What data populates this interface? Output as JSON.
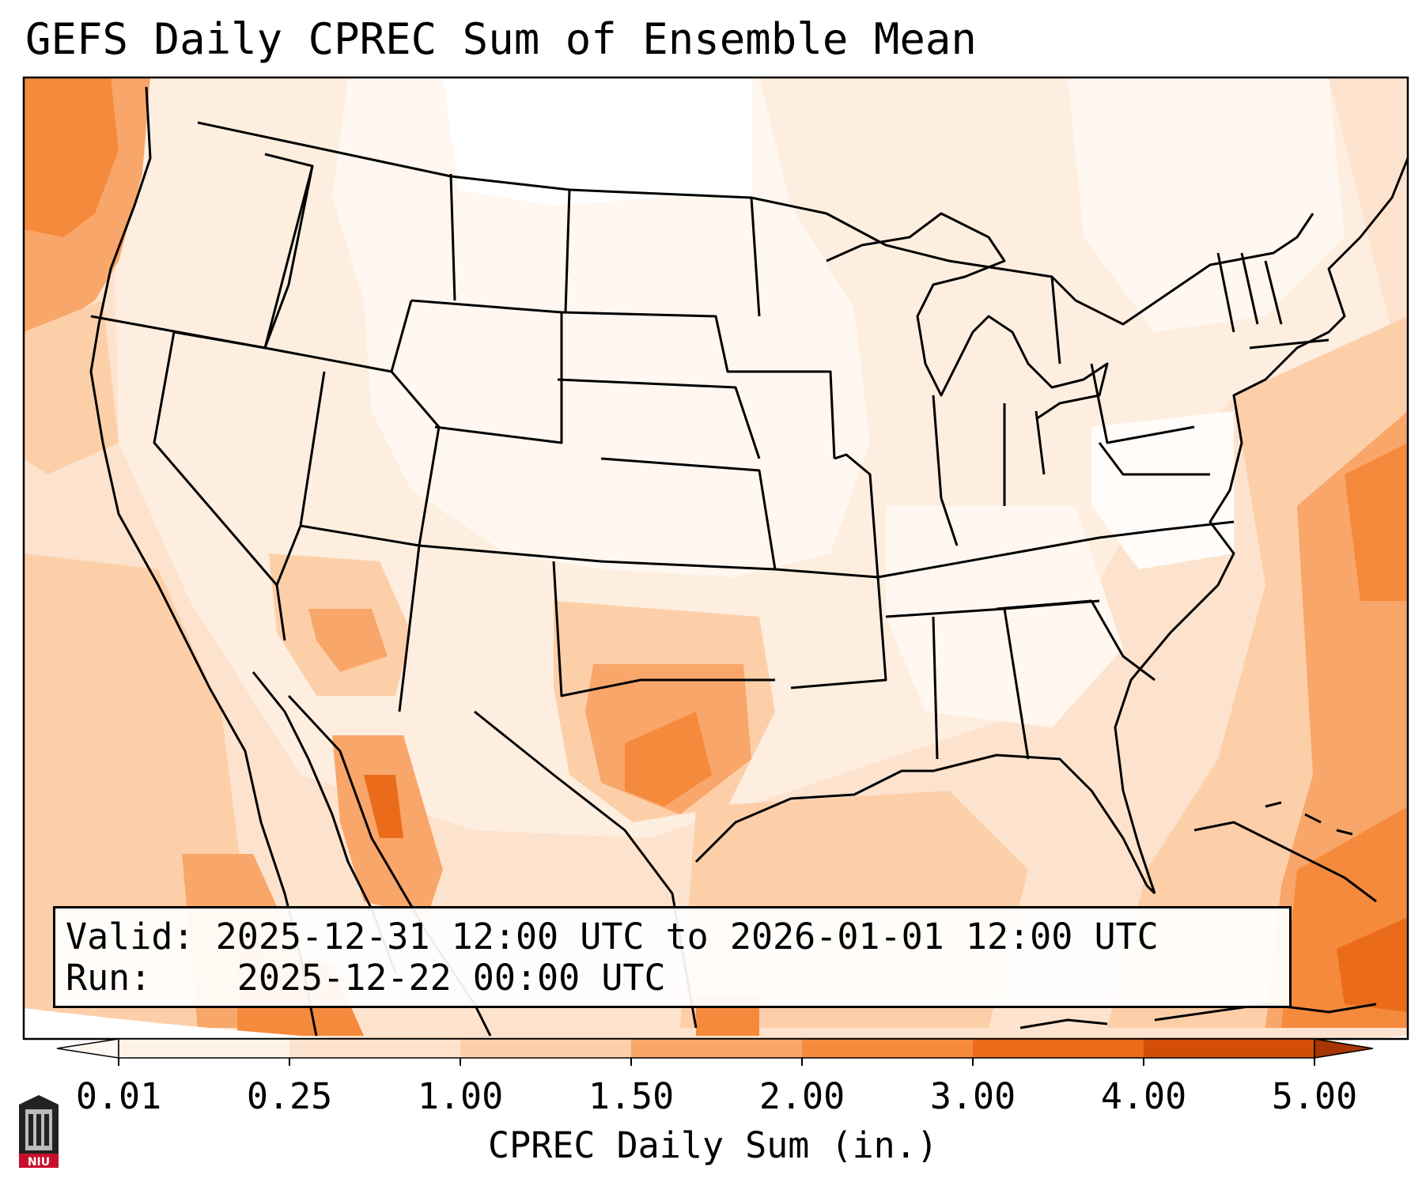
{
  "title": "GEFS Daily CPREC Sum of Ensemble Mean",
  "info_box": {
    "valid_label": "Valid:",
    "valid_value": "2025-12-31 12:00 UTC to 2026-01-01 12:00 UTC",
    "run_label": "Run:",
    "run_value": "2025-12-22 00:00 UTC"
  },
  "colorbar": {
    "label": "CPREC Daily Sum (in.)",
    "ticks": [
      "0.01",
      "0.25",
      "1.00",
      "1.50",
      "2.00",
      "3.00",
      "4.00",
      "5.00"
    ],
    "colors": [
      "#fff3e8",
      "#fde3cd",
      "#fdcfa9",
      "#f9a66a",
      "#f58a3c",
      "#ea6c1a",
      "#d24e08"
    ],
    "under_color": "#fff8f2",
    "over_color": "#a63603",
    "extend": "both"
  },
  "map": {
    "projection": "Lambert Conformal",
    "region": "Continental United States",
    "high_precip_regions": [
      "Pacific Northwest coast",
      "Arizona",
      "Central Texas",
      "Sierra Madre Occidental",
      "Western Atlantic east of the Carolinas",
      "Bahamas / Caribbean"
    ]
  },
  "logo": {
    "text": "NIU",
    "icon": "university-tower-icon"
  }
}
